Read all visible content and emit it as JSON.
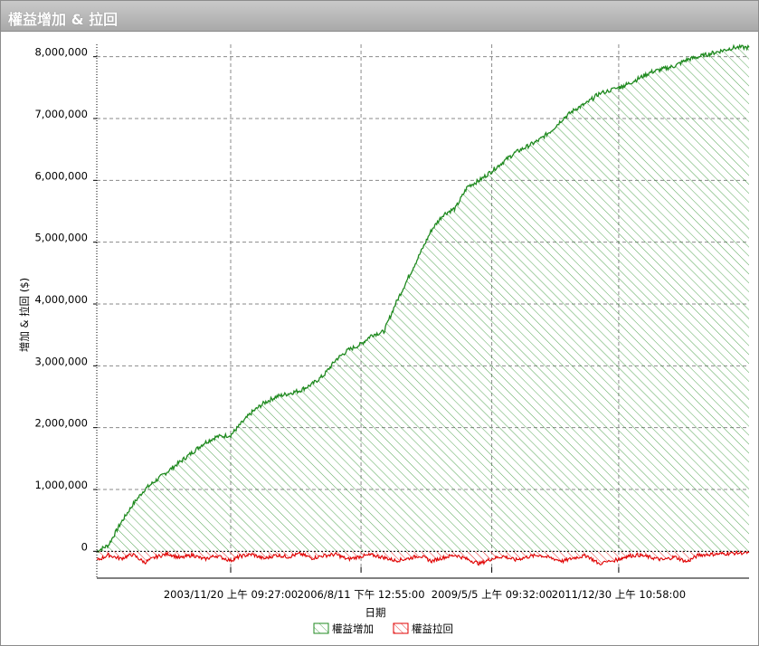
{
  "window": {
    "title": "權益增加 & 拉回"
  },
  "colors": {
    "equity": "#1f8a1f",
    "drawdown": "#e00000",
    "grid": "#8a8a8a"
  },
  "chart_data": {
    "type": "area",
    "title": "",
    "xlabel": "日期",
    "ylabel": "增加 & 拉回 ($)",
    "ylim": [
      -200000,
      8200000
    ],
    "grid": true,
    "legend_position": "bottom-center",
    "y_ticks": [
      "8,000,000",
      "7,000,000",
      "6,000,000",
      "5,000,000",
      "4,000,000",
      "3,000,000",
      "2,000,000",
      "1,000,000",
      "0"
    ],
    "y_tick_values": [
      8000000,
      7000000,
      6000000,
      5000000,
      4000000,
      3000000,
      2000000,
      1000000,
      0
    ],
    "x_ticks": [
      "2003/11/20 上午 09:27:00",
      "2006/8/11 下午 12:55:00",
      "2009/5/5 上午 09:32:00",
      "2011/12/30 上午 10:58:00"
    ],
    "x_range": [
      "2001-02-01",
      "2014-09-20"
    ],
    "x_tick_dates": [
      "2003-11-20",
      "2006-08-11",
      "2009-05-05",
      "2011-12-30"
    ],
    "series": [
      {
        "name": "權益增加",
        "color": "#1f8a1f",
        "x": [
          "2001-02-01",
          "2001-05-01",
          "2001-08-01",
          "2001-11-01",
          "2002-02-01",
          "2002-05-01",
          "2002-08-01",
          "2002-11-01",
          "2003-02-01",
          "2003-05-01",
          "2003-08-01",
          "2003-11-20",
          "2004-02-01",
          "2004-05-01",
          "2004-08-01",
          "2004-11-01",
          "2005-02-01",
          "2005-05-01",
          "2005-08-01",
          "2005-11-01",
          "2006-02-01",
          "2006-05-01",
          "2006-08-11",
          "2006-11-01",
          "2007-02-01",
          "2007-05-01",
          "2007-08-01",
          "2007-11-01",
          "2008-02-01",
          "2008-05-01",
          "2008-08-01",
          "2008-11-01",
          "2009-02-01",
          "2009-05-05",
          "2009-08-01",
          "2009-11-01",
          "2010-02-01",
          "2010-05-01",
          "2010-08-01",
          "2010-11-01",
          "2011-02-01",
          "2011-05-01",
          "2011-08-01",
          "2011-12-30",
          "2012-03-01",
          "2012-06-01",
          "2012-09-01",
          "2012-12-01",
          "2013-03-01",
          "2013-06-01",
          "2013-09-01",
          "2013-12-01",
          "2014-03-01",
          "2014-06-01",
          "2014-09-20"
        ],
        "values": [
          0,
          100000,
          450000,
          750000,
          1000000,
          1150000,
          1300000,
          1450000,
          1600000,
          1750000,
          1850000,
          1880000,
          2050000,
          2250000,
          2400000,
          2500000,
          2550000,
          2600000,
          2700000,
          2850000,
          3100000,
          3250000,
          3350000,
          3500000,
          3550000,
          4000000,
          4400000,
          4800000,
          5200000,
          5450000,
          5550000,
          5900000,
          6000000,
          6150000,
          6300000,
          6450000,
          6550000,
          6650000,
          6800000,
          7000000,
          7150000,
          7250000,
          7400000,
          7500000,
          7550000,
          7650000,
          7750000,
          7800000,
          7850000,
          7950000,
          8000000,
          8050000,
          8100000,
          8150000,
          8150000
        ]
      },
      {
        "name": "權益拉回",
        "color": "#e00000",
        "x": [
          "2001-02-01",
          "2001-05-01",
          "2001-08-01",
          "2001-11-01",
          "2002-02-01",
          "2002-05-01",
          "2002-08-01",
          "2002-11-01",
          "2003-02-01",
          "2003-05-01",
          "2003-08-01",
          "2003-11-20",
          "2004-02-01",
          "2004-05-01",
          "2004-08-01",
          "2004-11-01",
          "2005-02-01",
          "2005-05-01",
          "2005-08-01",
          "2005-11-01",
          "2006-02-01",
          "2006-05-01",
          "2006-08-11",
          "2006-11-01",
          "2007-02-01",
          "2007-05-01",
          "2007-08-01",
          "2007-11-01",
          "2008-02-01",
          "2008-05-01",
          "2008-08-01",
          "2008-11-01",
          "2009-02-01",
          "2009-05-05",
          "2009-08-01",
          "2009-11-01",
          "2010-02-01",
          "2010-05-01",
          "2010-08-01",
          "2010-11-01",
          "2011-02-01",
          "2011-05-01",
          "2011-08-01",
          "2011-12-30",
          "2012-03-01",
          "2012-06-01",
          "2012-09-01",
          "2012-12-01",
          "2013-03-01",
          "2013-06-01",
          "2013-09-01",
          "2013-12-01",
          "2014-03-01",
          "2014-06-01",
          "2014-09-20"
        ],
        "values": [
          -150000,
          -60000,
          -120000,
          -50000,
          -180000,
          -90000,
          -40000,
          -110000,
          -60000,
          -130000,
          -70000,
          -150000,
          -80000,
          -50000,
          -120000,
          -60000,
          -90000,
          -40000,
          -110000,
          -70000,
          -50000,
          -130000,
          -80000,
          -60000,
          -100000,
          -150000,
          -120000,
          -70000,
          -160000,
          -100000,
          -60000,
          -130000,
          -200000,
          -120000,
          -80000,
          -140000,
          -90000,
          -60000,
          -110000,
          -160000,
          -100000,
          -70000,
          -200000,
          -130000,
          -80000,
          -60000,
          -100000,
          -140000,
          -90000,
          -170000,
          -60000,
          -50000,
          -40000,
          -30000,
          -20000
        ]
      }
    ]
  }
}
